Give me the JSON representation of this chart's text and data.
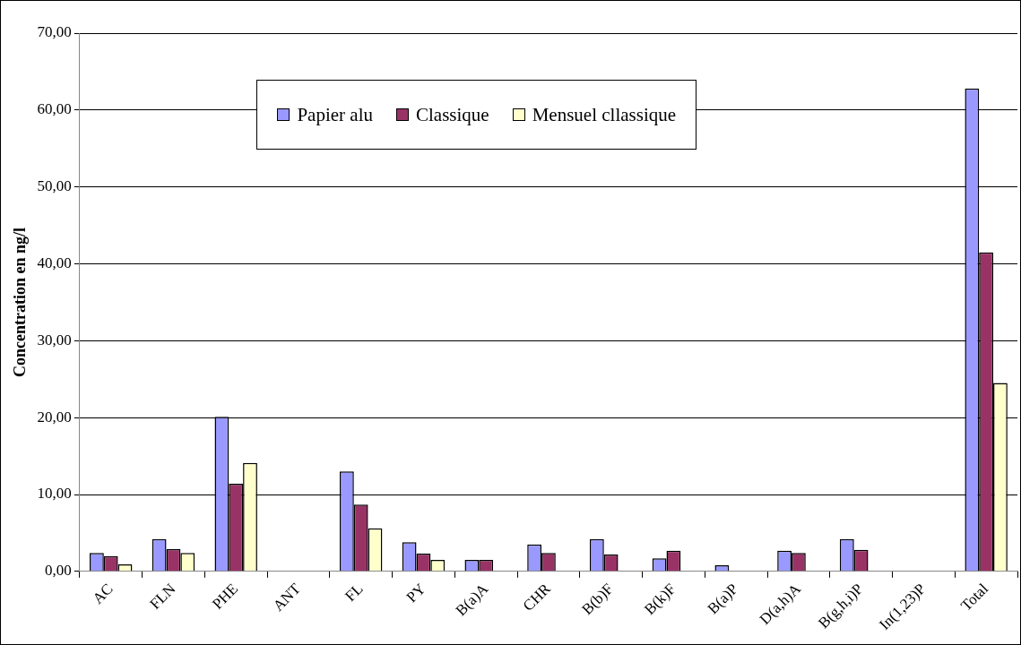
{
  "chart_data": {
    "type": "bar",
    "ylabel": "Concentration en ng/l",
    "categories": [
      "AC",
      "FLN",
      "PHE",
      "ANT",
      "FL",
      "PY",
      "B(a)A",
      "CHR",
      "B(b)F",
      "B(k)F",
      "B(a)P",
      "D(a,h)A",
      "B(g,h,i)P",
      "In(1,23)P",
      "Total"
    ],
    "series": [
      {
        "name": "Papier alu",
        "color": "#9999ff",
        "values": [
          2.4,
          4.2,
          20.1,
          null,
          13.0,
          3.8,
          1.5,
          3.5,
          4.2,
          1.7,
          0.8,
          2.7,
          4.2,
          null,
          62.8
        ]
      },
      {
        "name": "Classique",
        "color": "#993366",
        "values": [
          2.0,
          2.9,
          11.4,
          null,
          8.7,
          2.3,
          1.5,
          2.4,
          2.2,
          2.7,
          null,
          2.4,
          2.8,
          null,
          41.5
        ]
      },
      {
        "name": "Mensuel cllassique",
        "color": "#ffffcc",
        "values": [
          0.9,
          2.4,
          14.1,
          null,
          5.6,
          1.5,
          null,
          null,
          null,
          null,
          null,
          null,
          null,
          null,
          24.5
        ]
      }
    ],
    "ylim": [
      0,
      70
    ],
    "yticks": [
      {
        "value": 0,
        "label": "0,00"
      },
      {
        "value": 10,
        "label": "10,00"
      },
      {
        "value": 20,
        "label": "20,00"
      },
      {
        "value": 30,
        "label": "30,00"
      },
      {
        "value": 40,
        "label": "40,00"
      },
      {
        "value": 50,
        "label": "50,00"
      },
      {
        "value": 60,
        "label": "60,00"
      },
      {
        "value": 70,
        "label": "70,00"
      }
    ],
    "grid": "y",
    "legend": "top"
  }
}
